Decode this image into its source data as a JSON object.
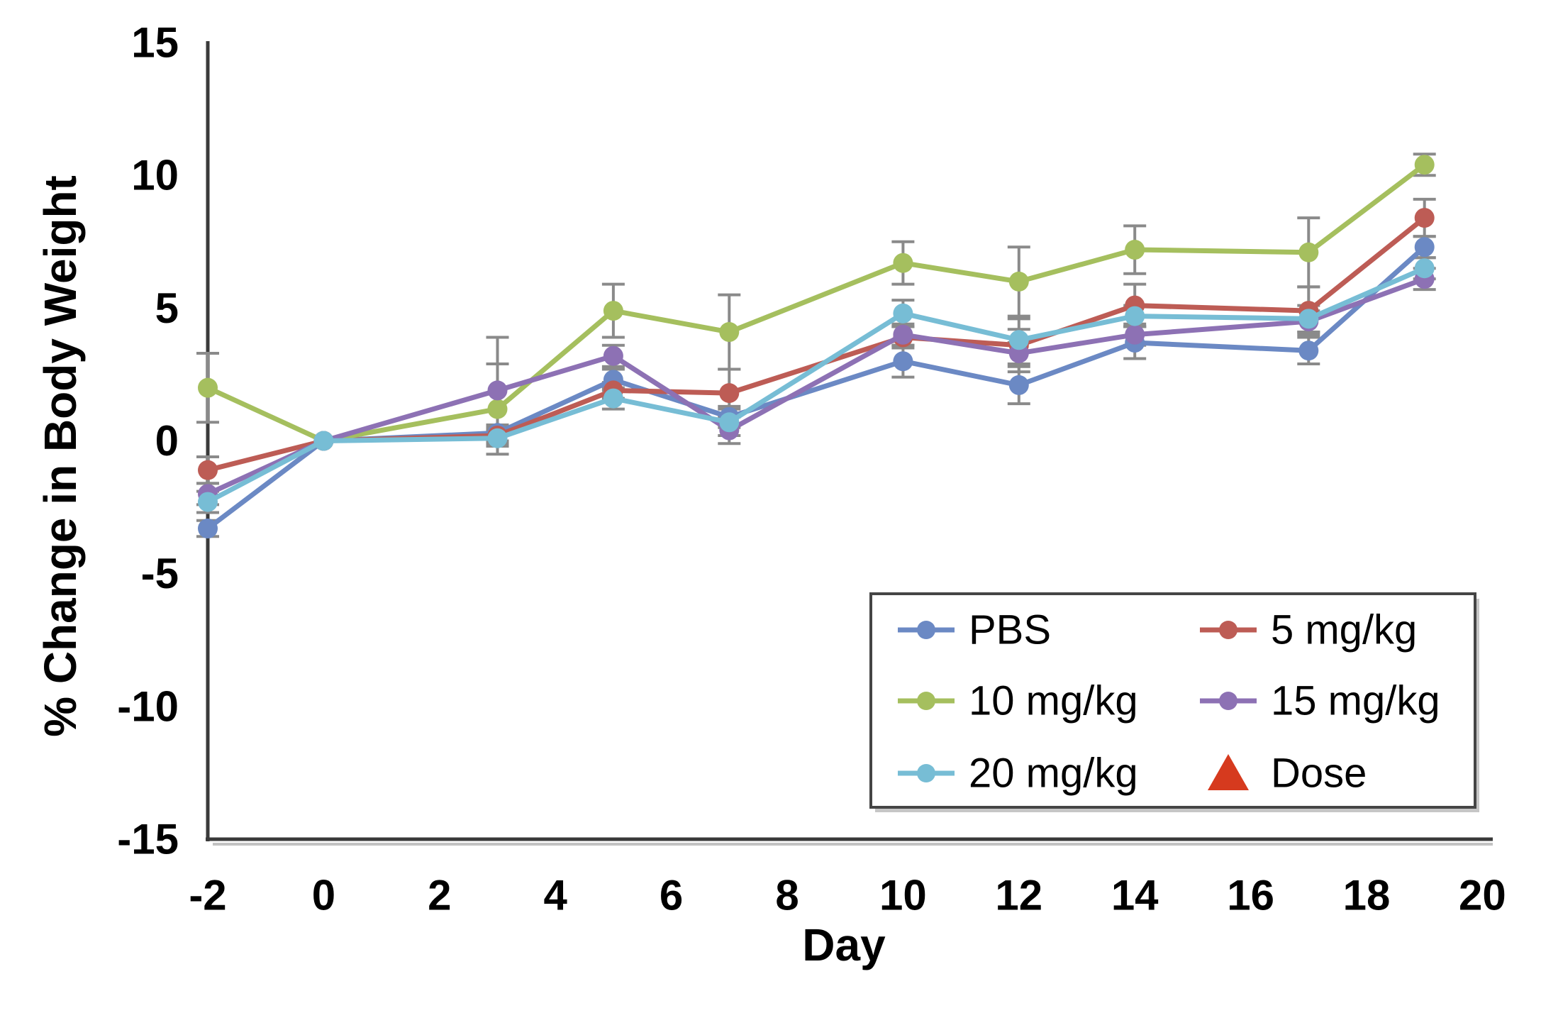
{
  "chart_data": {
    "type": "line",
    "title": "",
    "xlabel": "Day",
    "ylabel": "% Change in Body Weight",
    "xlim": [
      -2,
      20
    ],
    "ylim": [
      -15,
      15
    ],
    "grid": false,
    "x_ticks": [
      "-2",
      "0",
      "2",
      "4",
      "6",
      "8",
      "10",
      "12",
      "14",
      "16",
      "18",
      "20"
    ],
    "x_tick_values": [
      -2,
      0,
      2,
      4,
      6,
      8,
      10,
      12,
      14,
      16,
      18,
      20
    ],
    "y_ticks": [
      "15",
      "10",
      "5",
      "0",
      "-5",
      "-10",
      "-15"
    ],
    "y_tick_values": [
      15,
      10,
      5,
      0,
      -5,
      -10,
      -15
    ],
    "x": [
      -2,
      0,
      3,
      5,
      7,
      10,
      12,
      14,
      17,
      19
    ],
    "series": [
      {
        "name": "PBS",
        "color": "#6b89c4",
        "values": [
          -3.3,
          0,
          0.3,
          2.3,
          0.9,
          3.0,
          2.1,
          3.7,
          3.4,
          7.3
        ],
        "err": [
          0.3,
          0,
          0.3,
          0.4,
          0.4,
          0.6,
          0.7,
          0.6,
          0.5,
          0.4
        ]
      },
      {
        "name": "5 mg/kg",
        "color": "#bd5c55",
        "values": [
          -1.1,
          0,
          0.2,
          1.9,
          1.8,
          3.9,
          3.6,
          5.1,
          4.9,
          8.4
        ],
        "err": [
          0.5,
          0,
          0.3,
          0.3,
          0.9,
          0.4,
          1.0,
          0.8,
          0.9,
          0.7
        ]
      },
      {
        "name": "10 mg/kg",
        "color": "#a5bf5e",
        "values": [
          2.0,
          0,
          1.2,
          4.9,
          4.1,
          6.7,
          6.0,
          7.2,
          7.1,
          10.4
        ],
        "err": [
          1.3,
          0,
          1.7,
          1.0,
          1.4,
          0.8,
          1.3,
          0.9,
          1.3,
          0.4
        ]
      },
      {
        "name": "15 mg/kg",
        "color": "#8d71b4",
        "values": [
          -2.0,
          0,
          1.9,
          3.2,
          0.4,
          4.0,
          3.3,
          4.0,
          4.5,
          6.1
        ],
        "err": [
          0.4,
          0,
          2.0,
          0.4,
          0.5,
          0.4,
          0.4,
          0.4,
          0.4,
          0.4
        ]
      },
      {
        "name": "20 mg/kg",
        "color": "#77bdd5",
        "values": [
          -2.3,
          0,
          0.1,
          1.6,
          0.7,
          4.8,
          3.8,
          4.7,
          4.6,
          6.5
        ],
        "err": [
          0.4,
          0,
          0.3,
          0.4,
          0.5,
          0.5,
          0.4,
          0.4,
          0.5,
          0.4
        ]
      }
    ],
    "legend": {
      "position": "inside-bottom-right",
      "columns": [
        [
          "PBS",
          "10 mg/kg",
          "20 mg/kg"
        ],
        [
          "5 mg/kg",
          "15 mg/kg",
          "Dose"
        ]
      ]
    },
    "dose_marker": {
      "label": "Dose",
      "shape": "triangle-up",
      "color": "#d63a1e"
    },
    "colors": {
      "axis": "#3a3a3a",
      "axis_shadow": "#c2c2c2",
      "error_bar": "#8a8a8a",
      "legend_border": "#454545",
      "legend_shadow": "#c6c6c6",
      "background": "#ffffff"
    }
  }
}
